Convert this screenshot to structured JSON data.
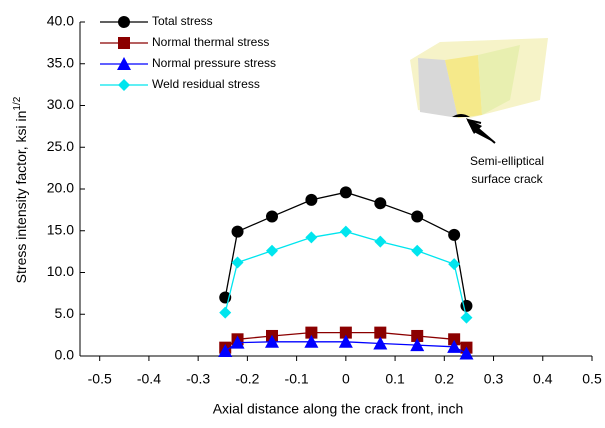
{
  "chart_data": {
    "type": "line",
    "x_label": "Axial distance along the crack front, inch",
    "y_label": "Stress intensity factor, ksi in",
    "y_label_superscript": "1/2",
    "annotation": [
      "Semi-elliptical",
      "surface crack"
    ],
    "x": [
      -0.245,
      -0.22,
      -0.15,
      -0.07,
      0,
      0.07,
      0.145,
      0.22,
      0.245
    ],
    "series": [
      {
        "name": "Total stress",
        "color": "#000000",
        "marker": "circle",
        "values": [
          7.0,
          14.9,
          16.7,
          18.7,
          19.6,
          18.3,
          16.7,
          14.5,
          6.0
        ]
      },
      {
        "name": "Normal thermal stress",
        "color": "#8b0000",
        "marker": "square",
        "values": [
          1.0,
          2.0,
          2.4,
          2.8,
          2.8,
          2.8,
          2.4,
          2.0,
          1.0
        ]
      },
      {
        "name": "Normal pressure stress",
        "color": "#0000ff",
        "marker": "triangle",
        "values": [
          0.6,
          1.6,
          1.7,
          1.7,
          1.7,
          1.5,
          1.3,
          1.1,
          0.3
        ]
      },
      {
        "name": "Weld residual stress",
        "color": "#00e5ee",
        "marker": "diamond",
        "values": [
          5.2,
          11.2,
          12.6,
          14.2,
          14.9,
          13.7,
          12.6,
          11.0,
          4.6
        ]
      }
    ],
    "xlim": [
      -0.54,
      0.5
    ],
    "xticks": [
      -0.5,
      -0.4,
      -0.3,
      -0.2,
      -0.1,
      0,
      0.1,
      0.2,
      0.3,
      0.4,
      0.5
    ],
    "ylim": [
      0,
      40
    ],
    "yticks": [
      {
        "value": 0,
        "label": "0.0"
      },
      {
        "value": 5,
        "label": "5.0"
      },
      {
        "value": 10,
        "label": "10.0"
      },
      {
        "value": 15,
        "label": "15.0"
      },
      {
        "value": 20,
        "label": "20.0"
      },
      {
        "value": 25,
        "label": "25.0"
      },
      {
        "value": 30,
        "label": "30.0"
      },
      {
        "value": 35,
        "label": "35.0"
      },
      {
        "value": 40,
        "label": "40.0"
      }
    ],
    "grid": false,
    "legend": "upper left"
  }
}
